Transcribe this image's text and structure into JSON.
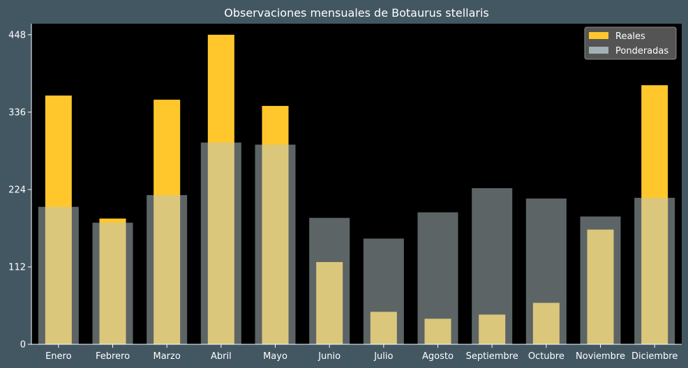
{
  "chart_data": {
    "type": "bar",
    "title": "Observaciones mensuales de Botaurus stellaris",
    "xlabel": "",
    "ylabel": "",
    "categories": [
      "Enero",
      "Febrero",
      "Marzo",
      "Abril",
      "Mayo",
      "Junio",
      "Julio",
      "Agosto",
      "Septiembre",
      "Octubre",
      "Noviembre",
      "Diciembre"
    ],
    "series": [
      {
        "name": "Reales",
        "color": "#ffc72c",
        "values": [
          360,
          182,
          354,
          448,
          345,
          119,
          47,
          37,
          43,
          60,
          166,
          375
        ]
      },
      {
        "name": "Ponderadas",
        "color": "#b7c7cc",
        "opacity": 0.5,
        "values": [
          199,
          176,
          216,
          292,
          289,
          183,
          153,
          191,
          226,
          211,
          185,
          212
        ]
      }
    ],
    "ylim": [
      0,
      464
    ],
    "yticks": [
      0,
      112,
      224,
      336,
      448
    ],
    "legend": {
      "position": "top-right",
      "entries": [
        "Reales",
        "Ponderadas"
      ]
    },
    "grid": false,
    "colors": {
      "figure_background": "#435763",
      "plot_background": "#000000",
      "text": "#ffffff",
      "legend_background": "#595959"
    }
  }
}
